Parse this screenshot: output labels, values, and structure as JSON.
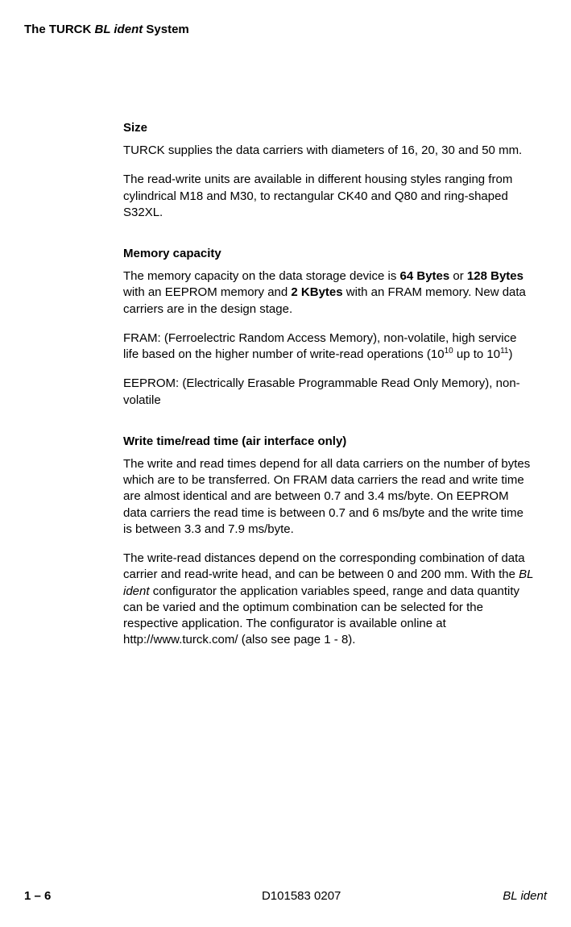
{
  "header": {
    "prefix": "The TURCK ",
    "italic": "BL ident",
    "suffix": " System"
  },
  "sections": {
    "size": {
      "heading": "Size",
      "p1": "TURCK supplies the data carriers with diameters of 16, 20, 30 and 50 mm.",
      "p2": "The read-write units are available in different housing styles ranging from cylindrical M18 and M30, to rectangular CK40 and Q80 and ring-shaped S32XL."
    },
    "memory": {
      "heading": "Memory capacity",
      "p1_a": "The memory capacity on the data storage device is ",
      "p1_b1": "64 Bytes",
      "p1_c": " or ",
      "p1_b2": "128 Bytes",
      "p1_d": " with an EEPROM memory and ",
      "p1_b3": "2 KBytes",
      "p1_e": " with an FRAM memory. New data carriers are in the design stage.",
      "p2_a": "FRAM: (Ferroelectric Random Access Memory), non-volatile, high service life based on the higher number of write-read operations (10",
      "p2_sup1": "10",
      "p2_b": " up to 10",
      "p2_sup2": "11",
      "p2_c": ")",
      "p3": "EEPROM: (Electrically Erasable Programmable Read Only Memory), non-volatile"
    },
    "writetime": {
      "heading": "Write time/read time (air interface only)",
      "p1": "The write and read times depend for all data carriers on the number of bytes which are to be transferred. On FRAM data carriers the read and write time are almost identical and are between 0.7 and 3.4 ms/byte. On EEPROM data carriers the read time is between 0.7 and 6 ms/byte and the write time is between 3.3 and 7.9 ms/byte.",
      "p2_a": "The write-read distances depend on the corresponding combination of data carrier and read-write head, and can be between 0 and 200 mm. With the ",
      "p2_italic": "BL ident",
      "p2_b": " configurator the application variables speed, range and data quantity can be varied and the optimum combination can be selected for the respective application. The configurator is available online at http://www.turck.com/ (also see page 1 - 8)."
    }
  },
  "footer": {
    "left": "1 – 6",
    "center": "D101583 0207",
    "right": "BL ident"
  }
}
